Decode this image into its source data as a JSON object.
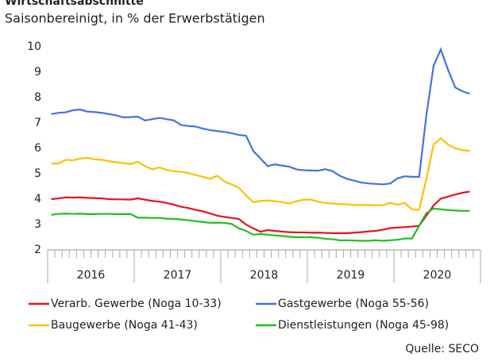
{
  "chart_data": {
    "type": "line",
    "title": "Wirtschaftsabschnitte",
    "subtitle": "Saisonbereinigt, in % der Erwerbstätigen",
    "source": "Quelle: SECO",
    "categories": [
      null,
      null,
      null,
      null,
      null,
      null,
      "2016",
      null,
      null,
      null,
      null,
      null,
      null,
      null,
      null,
      null,
      null,
      null,
      "2017",
      null,
      null,
      null,
      null,
      null,
      null,
      null,
      null,
      null,
      null,
      null,
      "2018",
      null,
      null,
      null,
      null,
      null,
      null,
      null,
      null,
      null,
      null,
      null,
      "2019",
      null,
      null,
      null,
      null,
      null,
      null,
      null,
      null,
      null,
      null,
      null,
      "2020",
      null,
      null,
      null,
      null
    ],
    "ylim": [
      2,
      10
    ],
    "yticks": [
      2,
      3,
      4,
      5,
      6,
      7,
      8,
      9,
      10
    ],
    "grid": false,
    "series": [
      {
        "name": "Verarb. Gewerbe (Noga 10-33)",
        "color": "#e8131b",
        "values": [
          4.0,
          4.03,
          4.07,
          4.06,
          4.07,
          4.05,
          4.04,
          4.03,
          4.0,
          3.99,
          3.99,
          3.98,
          4.03,
          3.98,
          3.93,
          3.9,
          3.85,
          3.78,
          3.7,
          3.65,
          3.58,
          3.52,
          3.44,
          3.35,
          3.3,
          3.26,
          3.22,
          3.0,
          2.85,
          2.72,
          2.78,
          2.75,
          2.72,
          2.7,
          2.69,
          2.69,
          2.68,
          2.68,
          2.67,
          2.66,
          2.66,
          2.66,
          2.68,
          2.7,
          2.73,
          2.75,
          2.8,
          2.86,
          2.88,
          2.9,
          2.92,
          2.95,
          3.35,
          3.75,
          4.02,
          4.1,
          4.18,
          4.25,
          4.3
        ]
      },
      {
        "name": "Gastgewerbe (Noga 55-56)",
        "color": "#4472e4",
        "values": [
          7.35,
          7.4,
          7.42,
          7.5,
          7.53,
          7.45,
          7.43,
          7.4,
          7.35,
          7.3,
          7.22,
          7.23,
          7.25,
          7.1,
          7.15,
          7.2,
          7.15,
          7.1,
          6.92,
          6.88,
          6.86,
          6.78,
          6.72,
          6.68,
          6.65,
          6.6,
          6.53,
          6.5,
          5.9,
          5.6,
          5.3,
          5.37,
          5.32,
          5.28,
          5.17,
          5.14,
          5.13,
          5.12,
          5.18,
          5.1,
          4.92,
          4.8,
          4.73,
          4.65,
          4.62,
          4.6,
          4.58,
          4.62,
          4.82,
          4.9,
          4.88,
          4.88,
          7.3,
          9.25,
          9.9,
          9.1,
          8.4,
          8.25,
          8.15
        ]
      },
      {
        "name": "Baugewerbe (Noga 41-43)",
        "color": "#ffc000",
        "values": [
          5.4,
          5.4,
          5.55,
          5.53,
          5.6,
          5.63,
          5.57,
          5.55,
          5.5,
          5.45,
          5.42,
          5.38,
          5.47,
          5.3,
          5.18,
          5.25,
          5.15,
          5.1,
          5.08,
          5.03,
          4.95,
          4.88,
          4.8,
          4.92,
          4.7,
          4.58,
          4.45,
          4.15,
          3.88,
          3.93,
          3.95,
          3.92,
          3.88,
          3.83,
          3.92,
          3.98,
          3.98,
          3.9,
          3.85,
          3.83,
          3.8,
          3.8,
          3.77,
          3.77,
          3.77,
          3.76,
          3.76,
          3.85,
          3.78,
          3.85,
          3.6,
          3.58,
          4.8,
          6.15,
          6.4,
          6.15,
          6.0,
          5.93,
          5.9
        ]
      },
      {
        "name": "Dienstleistungen (Noga 45-98)",
        "color": "#1ec01e",
        "values": [
          3.38,
          3.42,
          3.43,
          3.42,
          3.43,
          3.41,
          3.41,
          3.42,
          3.42,
          3.41,
          3.41,
          3.41,
          3.27,
          3.27,
          3.26,
          3.26,
          3.23,
          3.22,
          3.2,
          3.17,
          3.13,
          3.1,
          3.07,
          3.07,
          3.07,
          3.02,
          2.85,
          2.75,
          2.6,
          2.63,
          2.6,
          2.57,
          2.55,
          2.52,
          2.5,
          2.5,
          2.5,
          2.48,
          2.44,
          2.42,
          2.38,
          2.38,
          2.37,
          2.36,
          2.36,
          2.38,
          2.36,
          2.38,
          2.4,
          2.45,
          2.45,
          2.95,
          3.45,
          3.63,
          3.6,
          3.57,
          3.55,
          3.54,
          3.54
        ]
      }
    ]
  }
}
